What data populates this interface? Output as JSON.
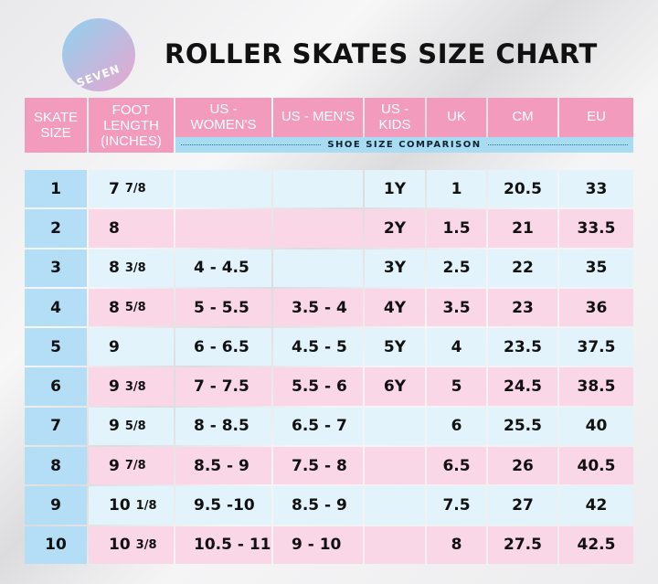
{
  "logo_text": "SEVEN",
  "chart_data": {
    "type": "table",
    "title": "ROLLER SKATES SIZE CHART",
    "group_label": "SHOE SIZE COMPARISON",
    "columns": [
      "SKATE SIZE",
      "FOOT LENGTH (INCHES)",
      "US - WOMEN'S",
      "US - MEN'S",
      "US - KIDS",
      "UK",
      "CM",
      "EU"
    ],
    "rows": [
      {
        "skate": "1",
        "foot": "7",
        "foot_frac": "7/8",
        "women": "",
        "men": "",
        "kids": "1Y",
        "uk": "1",
        "cm": "20.5",
        "eu": "33"
      },
      {
        "skate": "2",
        "foot": "8",
        "foot_frac": "",
        "women": "",
        "men": "",
        "kids": "2Y",
        "uk": "1.5",
        "cm": "21",
        "eu": "33.5"
      },
      {
        "skate": "3",
        "foot": "8",
        "foot_frac": "3/8",
        "women": "4 - 4.5",
        "men": "",
        "kids": "3Y",
        "uk": "2.5",
        "cm": "22",
        "eu": "35"
      },
      {
        "skate": "4",
        "foot": "8",
        "foot_frac": "5/8",
        "women": "5 - 5.5",
        "men": "3.5 - 4",
        "kids": "4Y",
        "uk": "3.5",
        "cm": "23",
        "eu": "36"
      },
      {
        "skate": "5",
        "foot": "9",
        "foot_frac": "",
        "women": "6 - 6.5",
        "men": "4.5 - 5",
        "kids": "5Y",
        "uk": "4",
        "cm": "23.5",
        "eu": "37.5"
      },
      {
        "skate": "6",
        "foot": "9",
        "foot_frac": "3/8",
        "women": "7 - 7.5",
        "men": "5.5 - 6",
        "kids": "6Y",
        "uk": "5",
        "cm": "24.5",
        "eu": "38.5"
      },
      {
        "skate": "7",
        "foot": "9",
        "foot_frac": "5/8",
        "women": "8 - 8.5",
        "men": "6.5 - 7",
        "kids": "",
        "uk": "6",
        "cm": "25.5",
        "eu": "40"
      },
      {
        "skate": "8",
        "foot": "9",
        "foot_frac": "7/8",
        "women": "8.5 - 9",
        "men": "7.5 - 8",
        "kids": "",
        "uk": "6.5",
        "cm": "26",
        "eu": "40.5"
      },
      {
        "skate": "9",
        "foot": "10",
        "foot_frac": "1/8",
        "women": "9.5 -10",
        "men": "8.5 - 9",
        "kids": "",
        "uk": "7.5",
        "cm": "27",
        "eu": "42"
      },
      {
        "skate": "10",
        "foot": "10",
        "foot_frac": "3/8",
        "women": "10.5 - 11",
        "men": "9 - 10",
        "kids": "",
        "uk": "8",
        "cm": "27.5",
        "eu": "42.5"
      }
    ],
    "colors": {
      "header": "#f29bbd",
      "first_col": "#b3def5",
      "row_blue": "#e3f3fb",
      "row_pink": "#fad7e6",
      "strip": "#a8dcf2"
    }
  }
}
